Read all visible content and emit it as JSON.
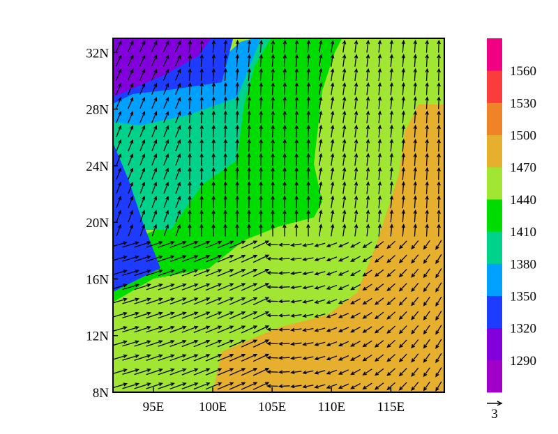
{
  "map": {
    "xlim": [
      91.6,
      119.5
    ],
    "ylim": [
      8,
      33
    ],
    "xticks": [
      {
        "value": 95,
        "label": "95E"
      },
      {
        "value": 100,
        "label": "100E"
      },
      {
        "value": 105,
        "label": "105E"
      },
      {
        "value": 110,
        "label": "110E"
      },
      {
        "value": 115,
        "label": "115E"
      }
    ],
    "yticks": [
      {
        "value": 8,
        "label": "8N"
      },
      {
        "value": 12,
        "label": "12N"
      },
      {
        "value": 16,
        "label": "16N"
      },
      {
        "value": 20,
        "label": "20N"
      },
      {
        "value": 24,
        "label": "24N"
      },
      {
        "value": 28,
        "label": "28N"
      },
      {
        "value": 32,
        "label": "32N"
      }
    ],
    "colorbar": {
      "levels": [
        1290,
        1320,
        1350,
        1380,
        1410,
        1440,
        1470,
        1500,
        1530,
        1560
      ],
      "colors": [
        "#a000c8",
        "#8200dc",
        "#1e3cff",
        "#00a0ff",
        "#00d28c",
        "#00dc00",
        "#a0e632",
        "#e6af2d",
        "#f08228",
        "#fa3c3c",
        "#f00082"
      ]
    },
    "reference_vector": "3"
  }
}
